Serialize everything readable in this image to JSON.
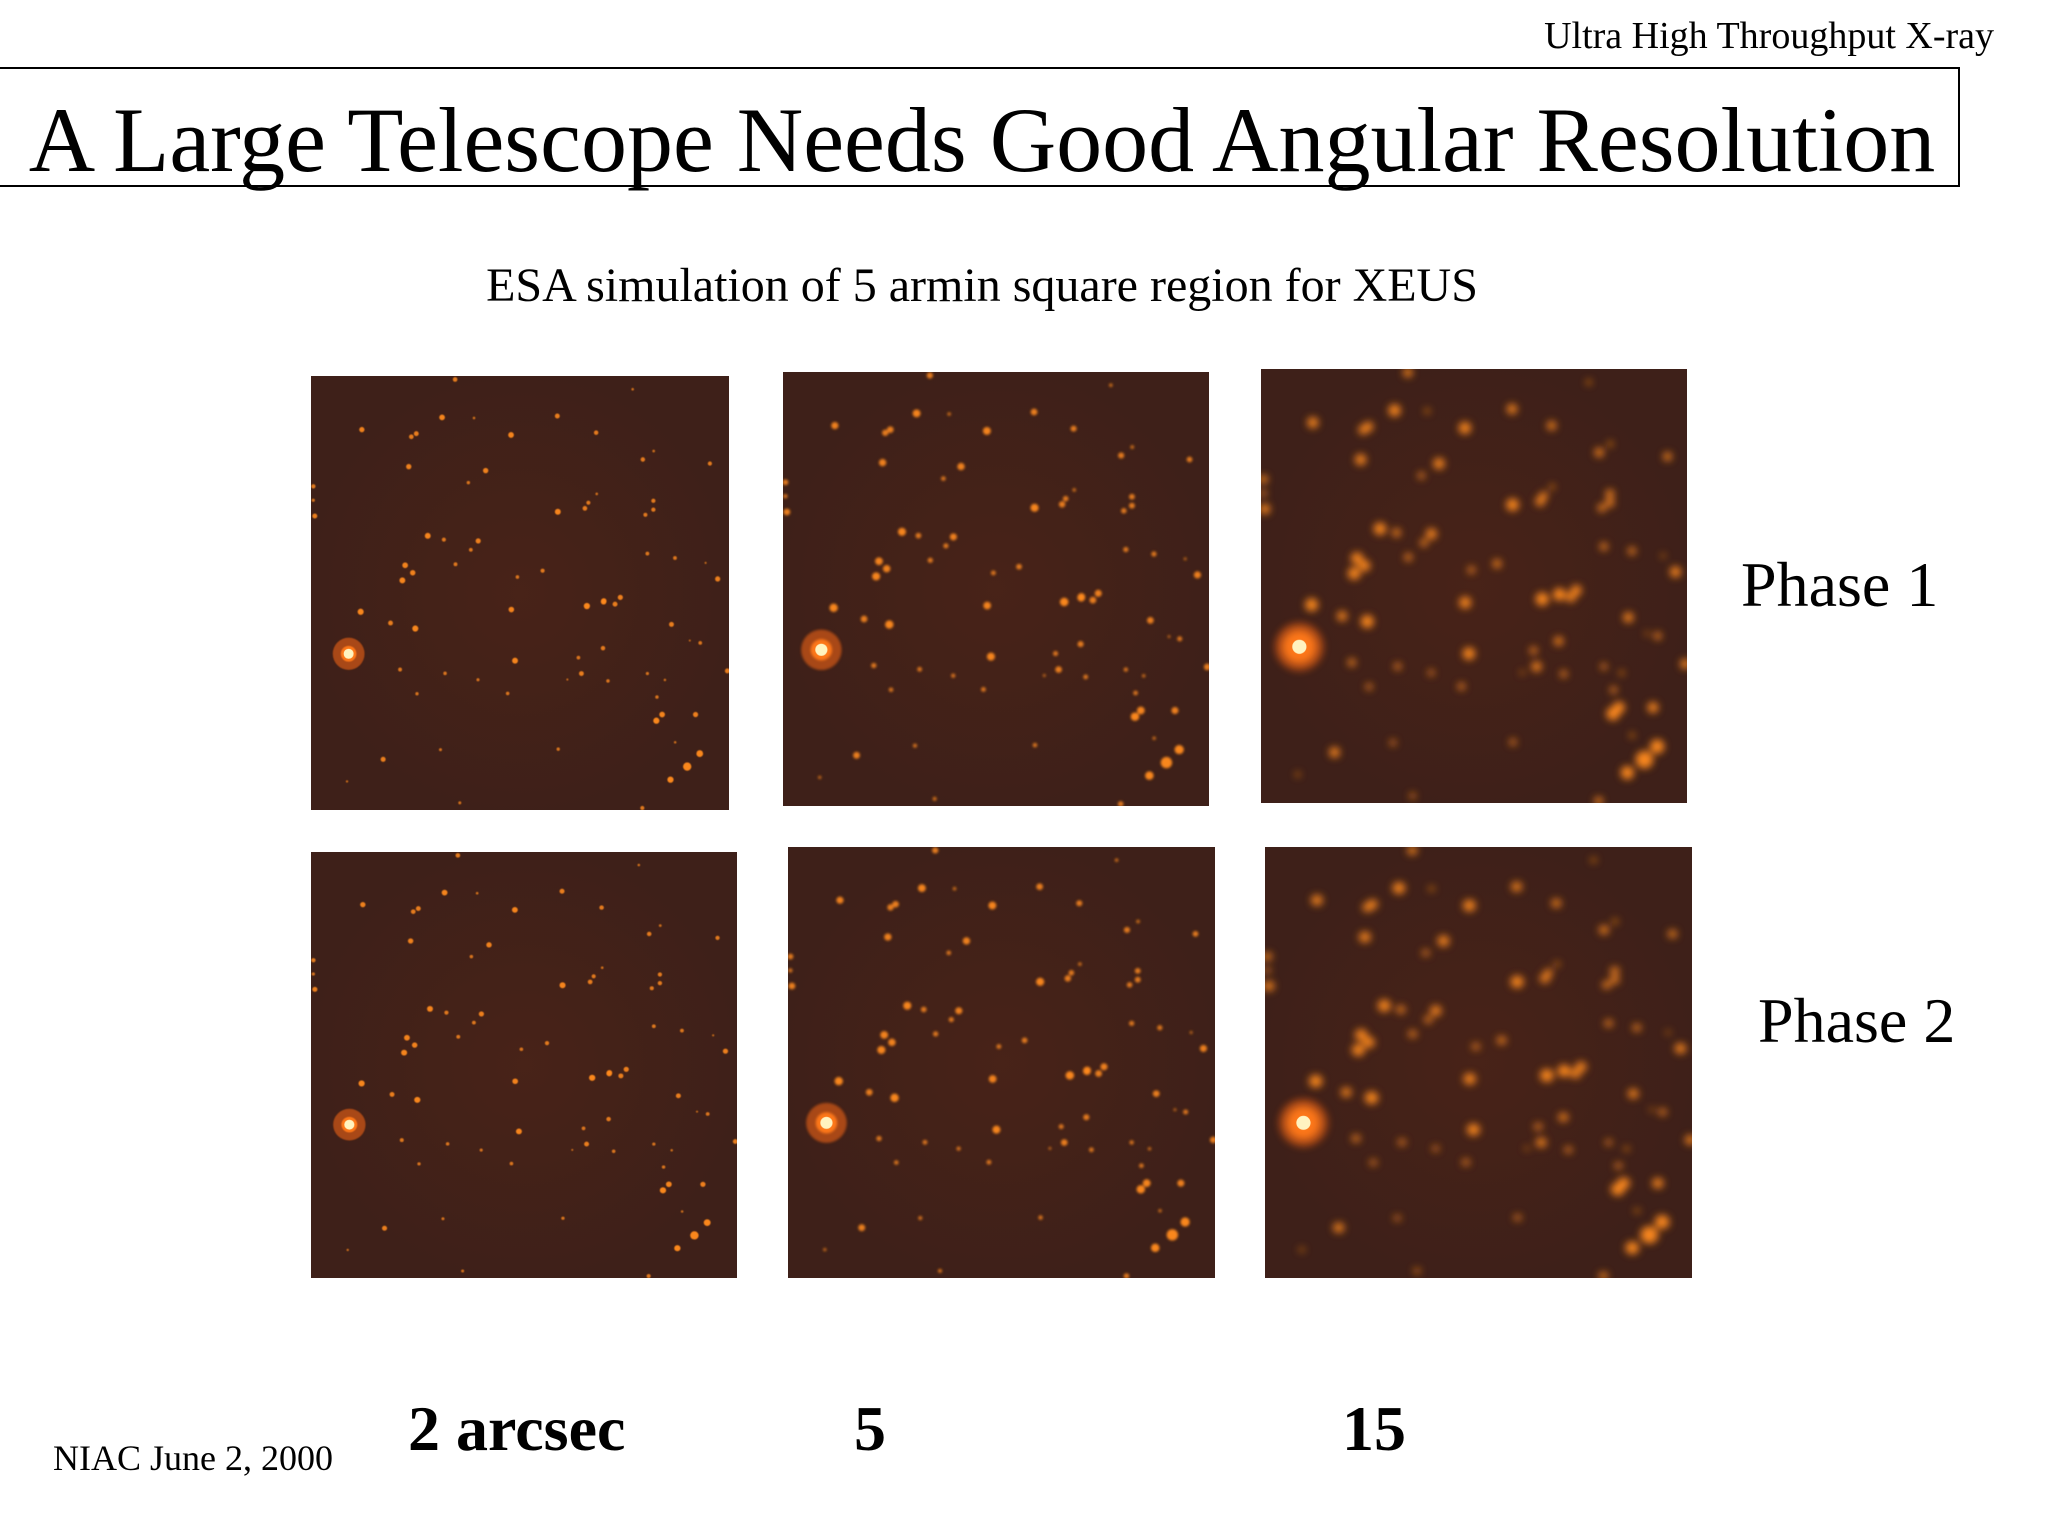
{
  "header": {
    "text": "Ultra High Throughput X-ray"
  },
  "slide": {
    "title": "A Large Telescope Needs Good Angular Resolution",
    "subtitle": "ESA simulation of 5 armin square region for XEUS"
  },
  "phases": [
    "Phase 1",
    "Phase 2"
  ],
  "resolutions": [
    "2 arcsec",
    "5",
    "15"
  ],
  "footer": {
    "text": "NIAC June 2, 2000"
  },
  "colors": {
    "panel_background": "#3e2019",
    "source_color": "#ff8a1e",
    "source_core": "#fff3c0"
  }
}
